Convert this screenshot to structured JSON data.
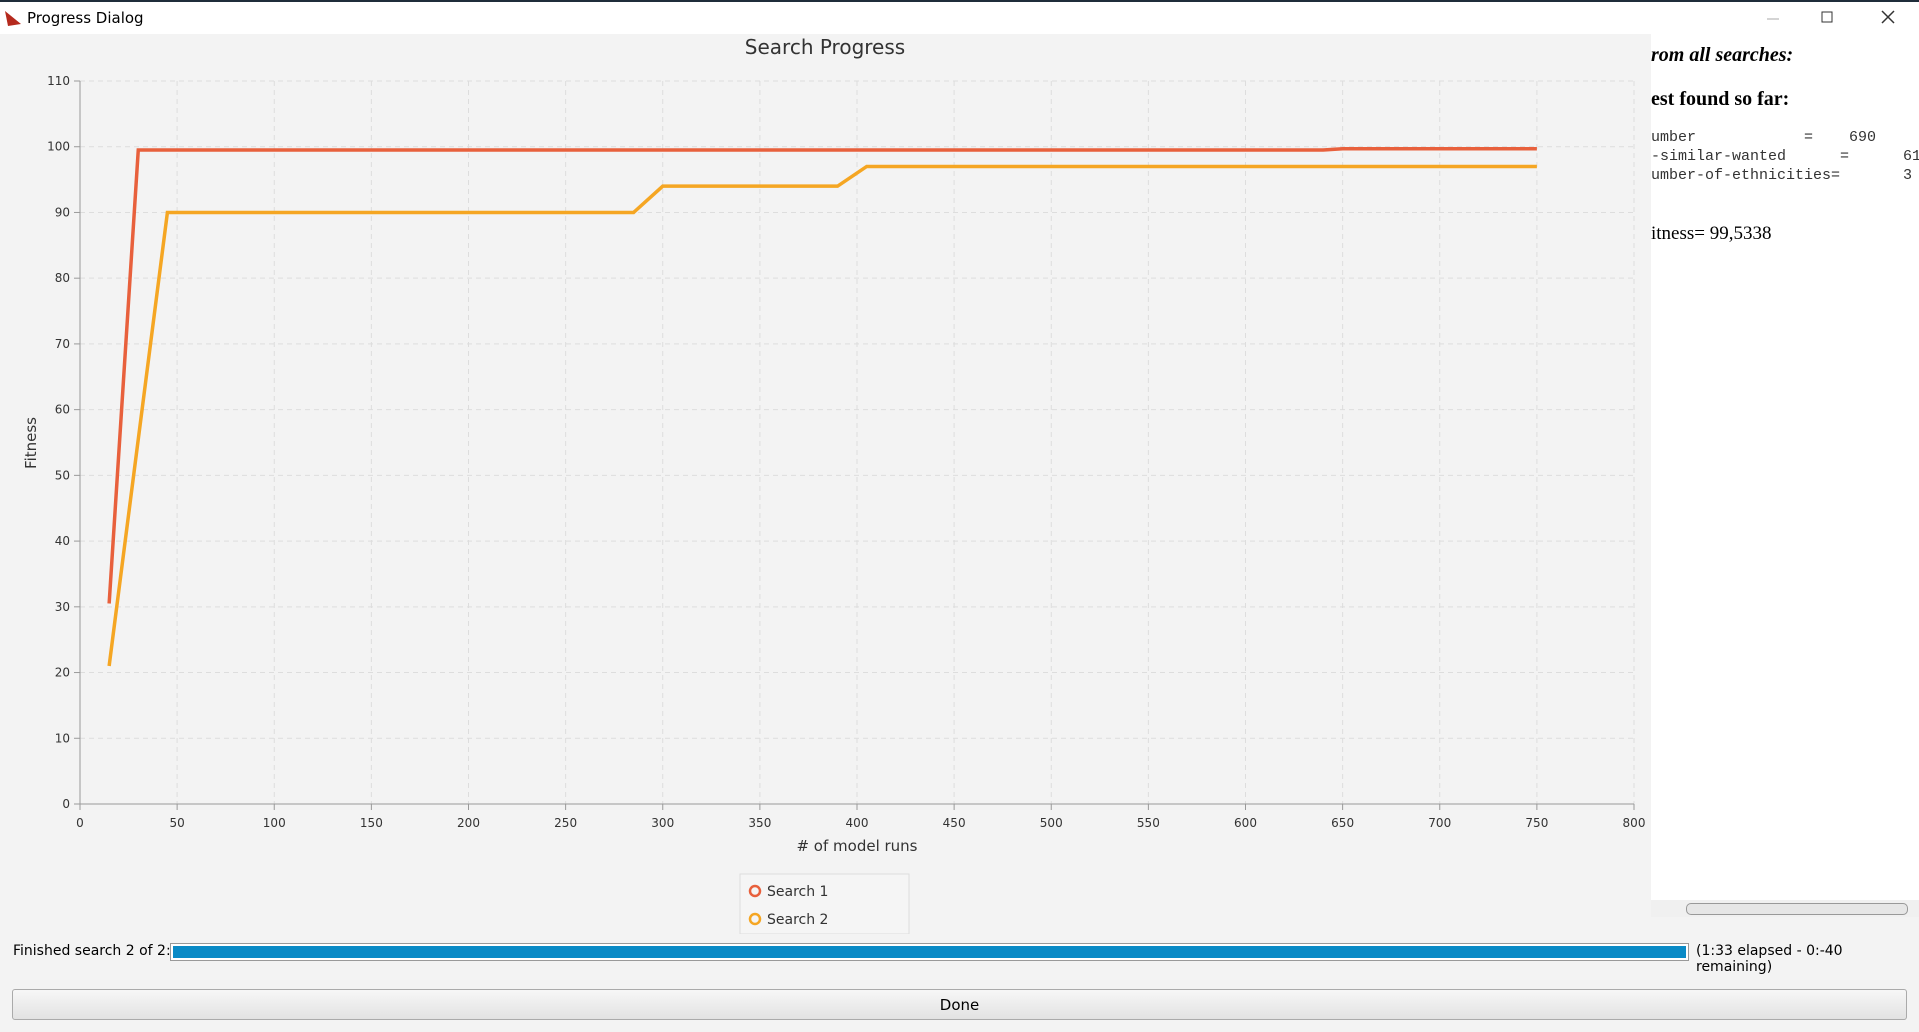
{
  "window": {
    "title": "Progress Dialog"
  },
  "chart_data": {
    "type": "line",
    "title": "Search Progress",
    "x_label": "# of model runs",
    "y_label": "Fitness",
    "xlim": [
      0,
      800
    ],
    "xticks": [
      0,
      50,
      100,
      150,
      200,
      250,
      300,
      350,
      400,
      450,
      500,
      550,
      600,
      650,
      700,
      750,
      800
    ],
    "ylim": [
      0,
      110
    ],
    "yticks": [
      0,
      10,
      20,
      30,
      40,
      50,
      60,
      70,
      80,
      90,
      100,
      110
    ],
    "grid": true,
    "series": [
      {
        "name": "Search 1",
        "color": "#e8603c",
        "x": [
          15,
          30,
          640,
          650,
          750
        ],
        "values": [
          30.5,
          99.5,
          99.5,
          99.7,
          99.7
        ]
      },
      {
        "name": "Search 2",
        "color": "#f5a623",
        "x": [
          15,
          45,
          285,
          300,
          390,
          405,
          750
        ],
        "values": [
          21,
          90,
          90,
          94,
          94,
          97,
          97
        ]
      }
    ]
  },
  "side_panel": {
    "heading": "rom all searches:",
    "subheading": "est found so far:",
    "params": [
      "umber            =    690",
      "-similar-wanted      =      61",
      "umber-of-ethnicities=       3"
    ],
    "fitness": "itness= 99,5338"
  },
  "status": {
    "label": "Finished search 2 of 2:",
    "time": "(1:33 elapsed - 0:-40 remaining)"
  },
  "button": "Done"
}
